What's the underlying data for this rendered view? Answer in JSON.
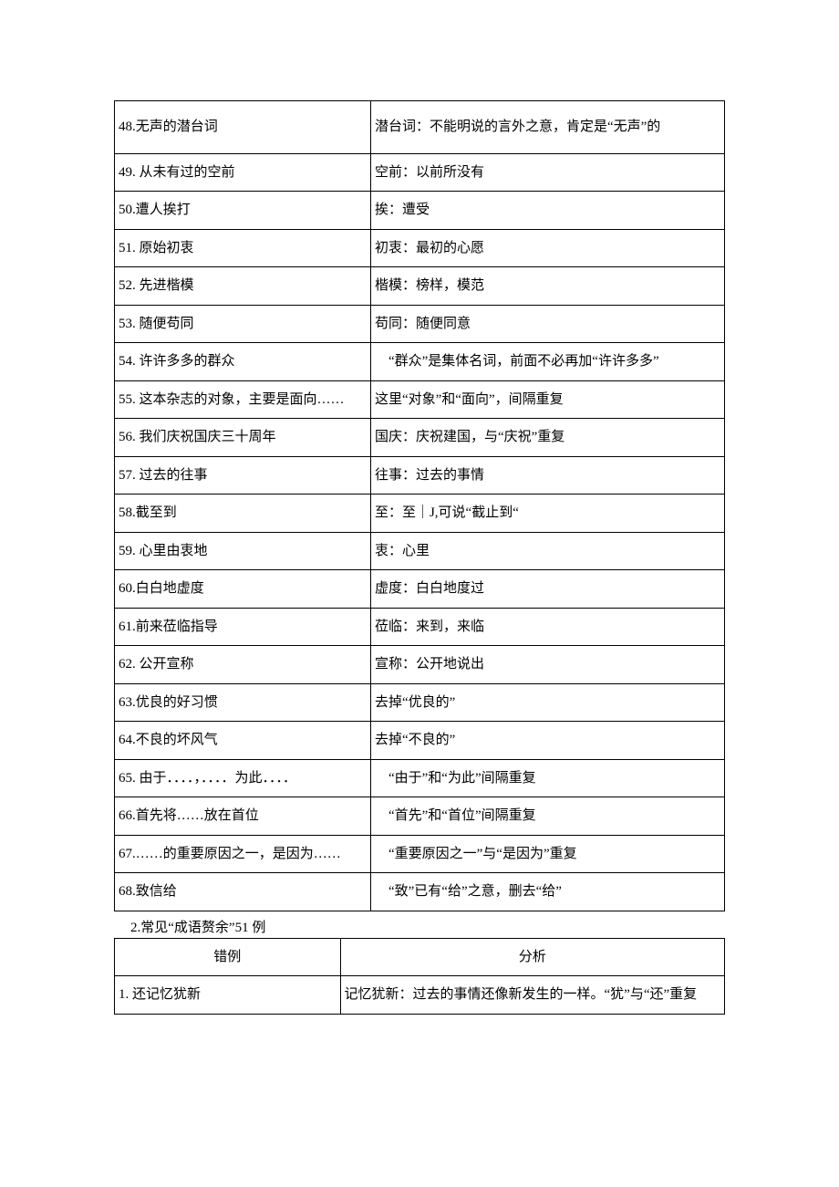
{
  "table1": {
    "rows": [
      {
        "c1": "48.无声的潜台词",
        "c2": "潜台词：不能明说的言外之意，肯定是“无声”的",
        "tall": true
      },
      {
        "c1": "49. 从未有过的空前",
        "c2": "空前：以前所没有"
      },
      {
        "c1": "50.遭人挨打",
        "c2": "挨：遭受"
      },
      {
        "c1": "51. 原始初衷",
        "c2": "初衷：最初的心愿"
      },
      {
        "c1": "52. 先进楷模",
        "c2": "楷模：榜样，模范"
      },
      {
        "c1": "53. 随便苟同",
        "c2": "苟同：随便同意"
      },
      {
        "c1": "54. 许许多多的群众",
        "c2": "　“群众”是集体名词，前面不必再加“许许多多”"
      },
      {
        "c1": "55. 这本杂志的对象，主要是面向……",
        "c2": "这里“对象”和“面向”，间隔重复"
      },
      {
        "c1": "56. 我们庆祝国庆三十周年",
        "c2": "国庆：庆祝建国，与“庆祝”重复"
      },
      {
        "c1": "57. 过去的往事",
        "c2": "往事：过去的事情"
      },
      {
        "c1": "58.截至到",
        "c2": "至：至｜J,可说“截止到“"
      },
      {
        "c1": "59. 心里由衷地",
        "c2": "衷：心里"
      },
      {
        "c1": "60.白白地虚度",
        "c2": "虚度：白白地度过"
      },
      {
        "c1": "61.前来莅临指导",
        "c2": "莅临：来到，来临"
      },
      {
        "c1": "62. 公开宣称",
        "c2": "宣称：公开地说出"
      },
      {
        "c1": "63.优良的好习惯",
        "c2": "去掉“优良的”"
      },
      {
        "c1": "64.不良的坏风气",
        "c2": "去掉“不良的”"
      },
      {
        "c1": "65. 由于．．．．，．．．．为此．．．．",
        "c2": "　“由于”和“为此”间隔重复"
      },
      {
        "c1": "66.首先将……放在首位",
        "c2": "　“首先”和“首位”间隔重复"
      },
      {
        "c1": "67.……的重要原因之一，是因为……",
        "c2": "　“重要原因之一”与“是因为”重复"
      },
      {
        "c1": "68.致信给",
        "c2": "　“致”已有“给”之意，删去“给”"
      }
    ]
  },
  "subtitle": "2.常见“成语赘余”51 例",
  "table2": {
    "header": {
      "c1": "错例",
      "c2": "分析"
    },
    "rows": [
      {
        "c1": "1. 还记忆犹新",
        "c2": "记忆犹新：过去的事情还像新发生的一样。“犹”与“还”重复"
      }
    ]
  }
}
